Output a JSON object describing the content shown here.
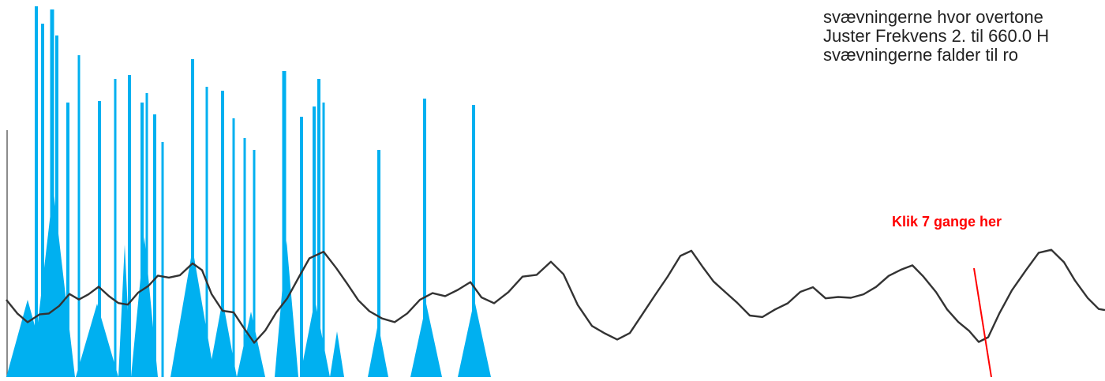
{
  "instructions": {
    "line1": "",
    "line2": "svævningerne hvor overtone",
    "line3": "Juster Frekvens 2. til 660.0 H",
    "line4": "svævningerne falder til ro"
  },
  "click_hint": "Klik 7 gange her",
  "colors": {
    "spectrum": "#00b0f0",
    "waveform": "#333333",
    "pointer": "#ff0000",
    "hint": "#ff0000"
  }
}
